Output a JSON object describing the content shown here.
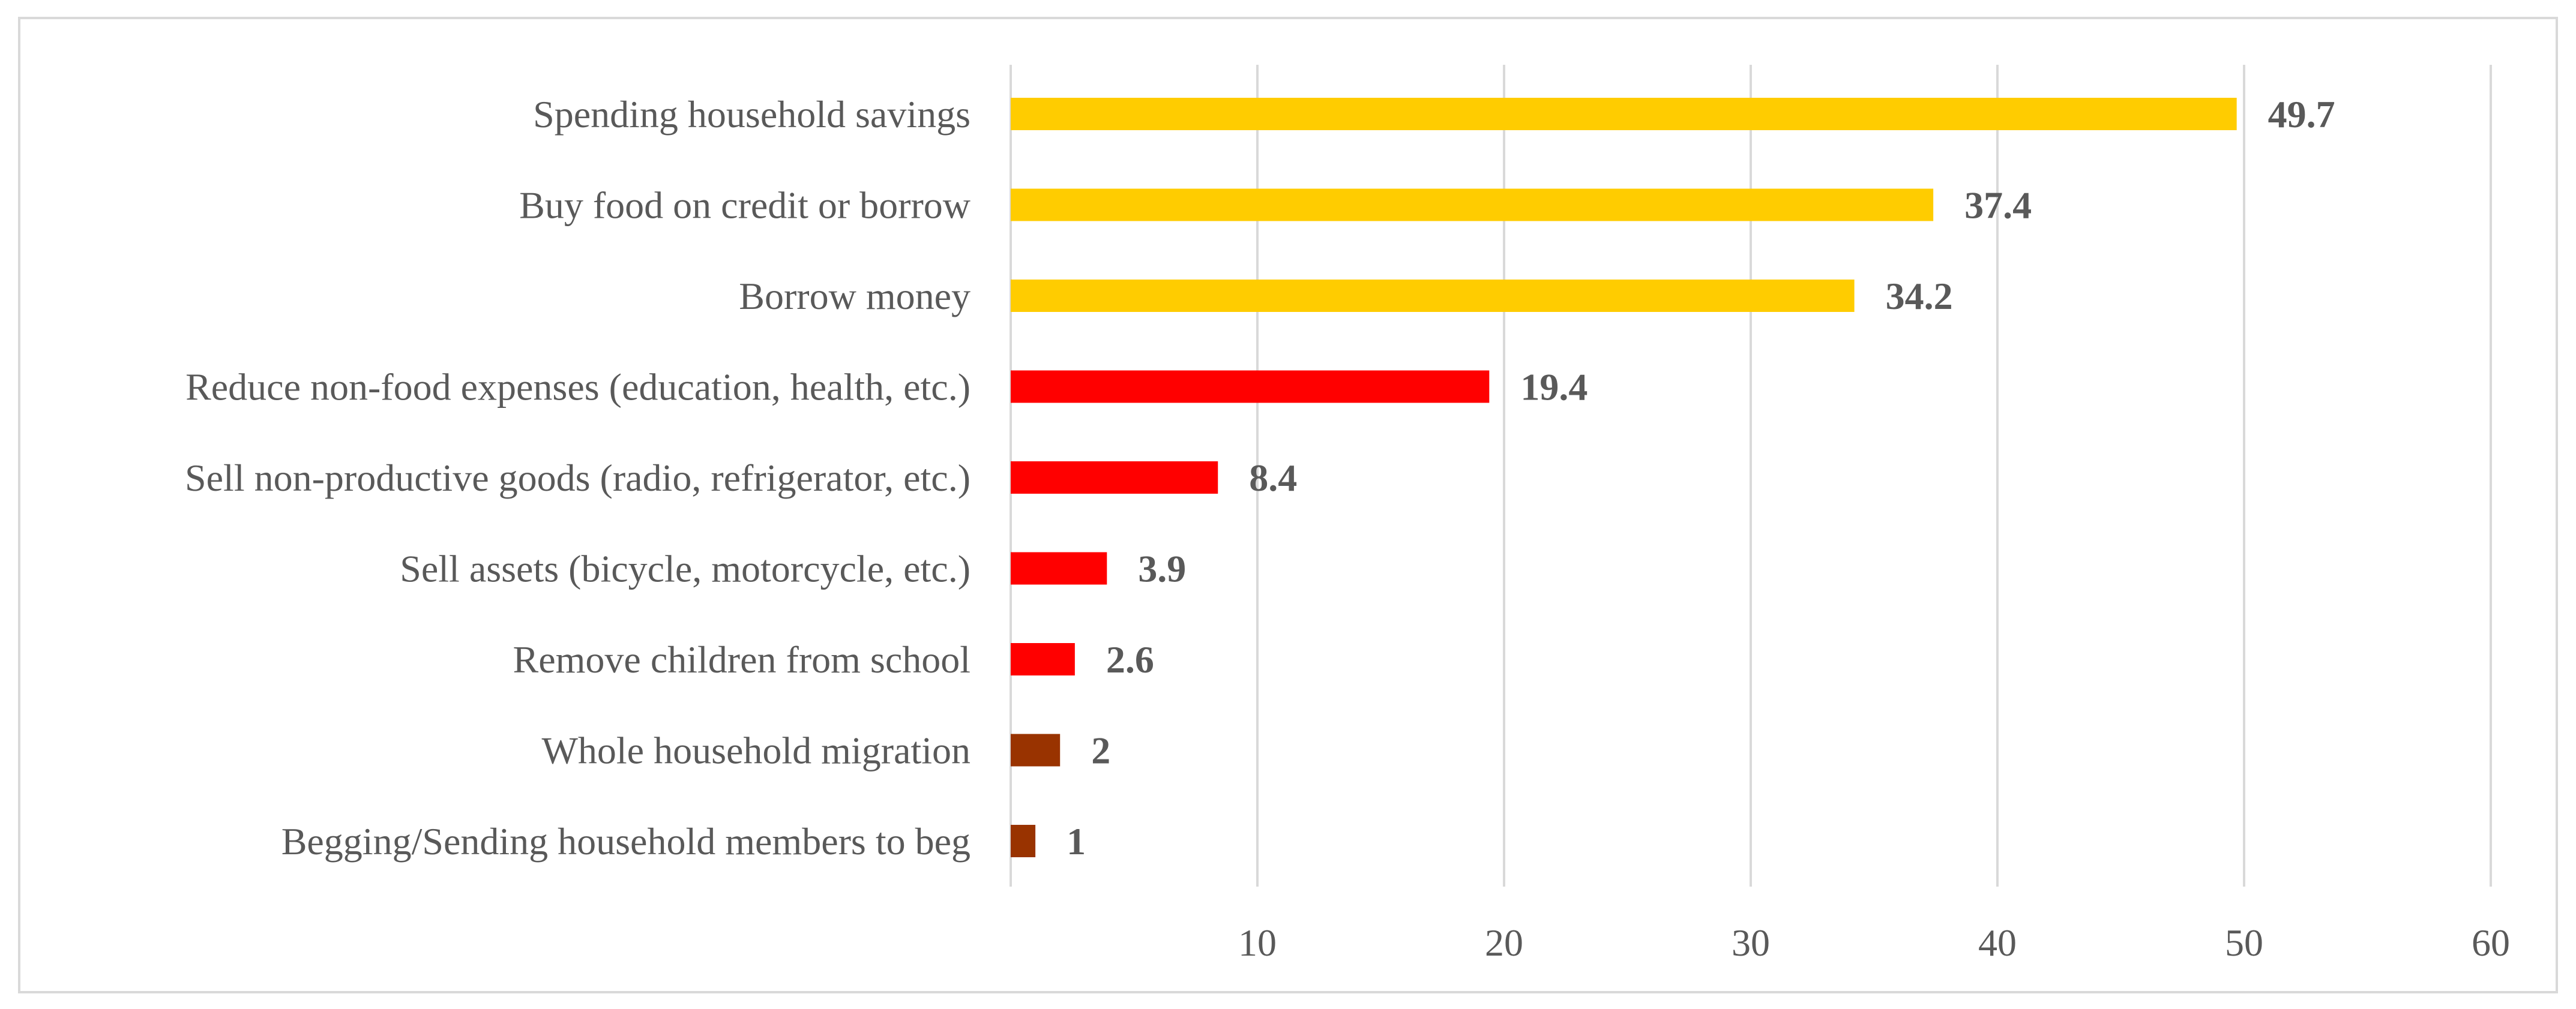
{
  "chart_data": {
    "type": "bar",
    "orientation": "horizontal",
    "categories": [
      "Spending household savings",
      "Buy food on credit or borrow",
      "Borrow money",
      "Reduce non-food expenses (education, health, etc.)",
      "Sell non-productive goods (radio, refrigerator, etc.)",
      "Sell assets (bicycle, motorcycle, etc.)",
      "Remove children from school",
      "Whole household migration",
      "Begging/Sending household members to beg"
    ],
    "values": [
      49.7,
      37.4,
      34.2,
      19.4,
      8.4,
      3.9,
      2.6,
      2,
      1
    ],
    "data_labels": [
      "49.7",
      "37.4",
      "34.2",
      "19.4",
      "8.4",
      "3.9",
      "2.6",
      "2",
      "1"
    ],
    "bar_colors": [
      "#FFCC00",
      "#FFCC00",
      "#FFCC00",
      "#FF0000",
      "#FF0000",
      "#FF0000",
      "#FF0000",
      "#993300",
      "#993300"
    ],
    "xlim": [
      0,
      60
    ],
    "xticks": [
      10,
      20,
      30,
      40,
      50,
      60
    ],
    "tick_labels": [
      "10",
      "20",
      "30",
      "40",
      "50",
      "60"
    ],
    "grid": "vertical",
    "grid_color": "#d9d9d9",
    "title": "",
    "xlabel": "",
    "ylabel": "",
    "legend": "none"
  }
}
